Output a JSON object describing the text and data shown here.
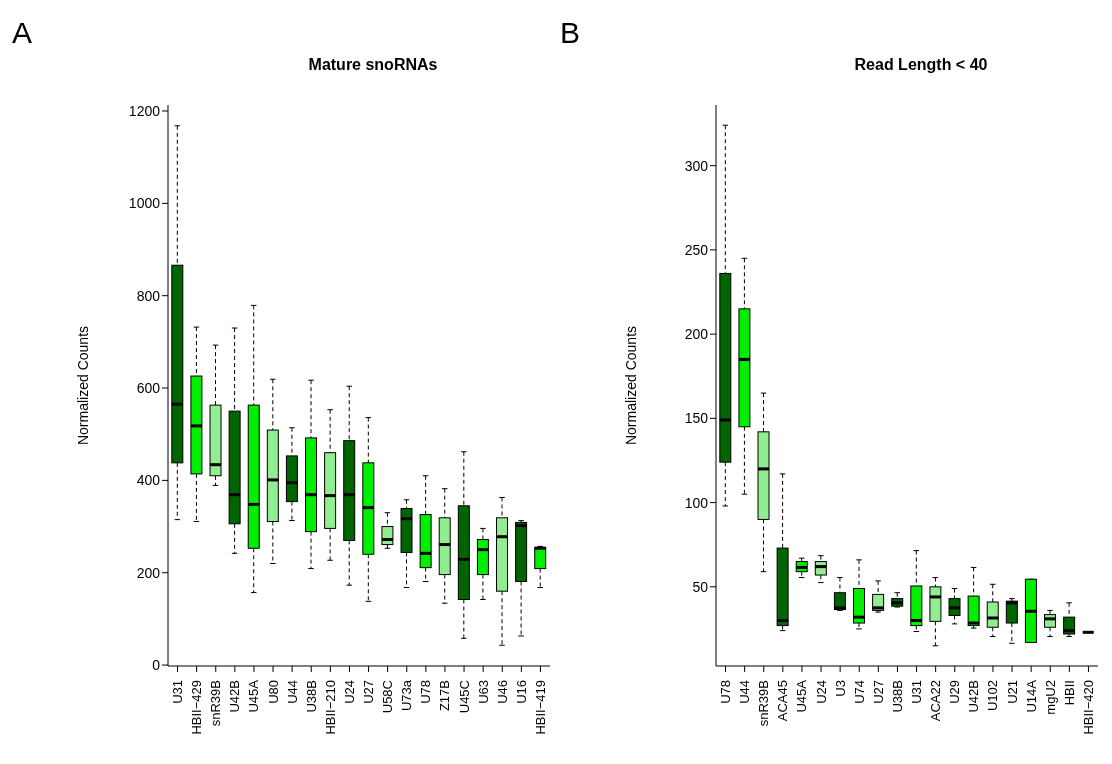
{
  "chart_data": [
    {
      "type": "box",
      "title": "Mature snoRNAs",
      "ylabel": "Normalized Counts",
      "annotations": [
        "A"
      ],
      "categories": [
        "U31",
        "HBII−429",
        "snR39B",
        "U42B",
        "U45A",
        "U80",
        "U44",
        "U38B",
        "HBII−210",
        "U24",
        "U27",
        "U58C",
        "U73a",
        "U78",
        "Z17B",
        "U45C",
        "U63",
        "U46",
        "U16",
        "HBII−419"
      ],
      "boxes": [
        {
          "low": 315,
          "q1": 438,
          "median": 565,
          "q3": 866,
          "high": 1168
        },
        {
          "low": 311,
          "q1": 414,
          "median": 518,
          "q3": 626,
          "high": 732
        },
        {
          "low": 389,
          "q1": 410,
          "median": 434,
          "q3": 563,
          "high": 693
        },
        {
          "low": 242,
          "q1": 306,
          "median": 369,
          "q3": 550,
          "high": 730
        },
        {
          "low": 157,
          "q1": 253,
          "median": 348,
          "q3": 563,
          "high": 779
        },
        {
          "low": 220,
          "q1": 311,
          "median": 401,
          "q3": 509,
          "high": 619
        },
        {
          "low": 313,
          "q1": 354,
          "median": 395,
          "q3": 453,
          "high": 514
        },
        {
          "low": 209,
          "q1": 289,
          "median": 369,
          "q3": 492,
          "high": 617
        },
        {
          "low": 227,
          "q1": 296,
          "median": 367,
          "q3": 460,
          "high": 553
        },
        {
          "low": 173,
          "q1": 270,
          "median": 369,
          "q3": 486,
          "high": 604
        },
        {
          "low": 138,
          "q1": 240,
          "median": 341,
          "q3": 438,
          "high": 536
        },
        {
          "low": 253,
          "q1": 261,
          "median": 272,
          "q3": 300,
          "high": 330
        },
        {
          "low": 168,
          "q1": 244,
          "median": 317,
          "q3": 339,
          "high": 358
        },
        {
          "low": 181,
          "q1": 211,
          "median": 242,
          "q3": 326,
          "high": 410
        },
        {
          "low": 134,
          "q1": 196,
          "median": 261,
          "q3": 319,
          "high": 382
        },
        {
          "low": 58,
          "q1": 142,
          "median": 229,
          "q3": 345,
          "high": 462
        },
        {
          "low": 142,
          "q1": 196,
          "median": 250,
          "q3": 272,
          "high": 296
        },
        {
          "low": 43,
          "q1": 160,
          "median": 278,
          "q3": 319,
          "high": 363
        },
        {
          "low": 63,
          "q1": 181,
          "median": 302,
          "q3": 309,
          "high": 313
        },
        {
          "low": 168,
          "q1": 209,
          "median": 253,
          "q3": 255,
          "high": 257
        }
      ],
      "colors": [
        "#006400",
        "#00ee00",
        "#90ee90",
        "#006400",
        "#00ee00",
        "#90ee90",
        "#006400",
        "#00ee00",
        "#90ee90",
        "#006400",
        "#00ee00",
        "#90ee90",
        "#006400",
        "#00ee00",
        "#90ee90",
        "#006400",
        "#00ee00",
        "#90ee90",
        "#006400",
        "#00ee00"
      ],
      "ylim": [
        -2,
        1213
      ],
      "yticks": [
        0,
        200,
        400,
        600,
        800,
        1000,
        1200
      ],
      "grid": false
    },
    {
      "type": "box",
      "title": "Read Length < 40",
      "ylabel": "Normalized Counts",
      "annotations": [
        "B"
      ],
      "categories": [
        "U78",
        "U44",
        "snR39B",
        "ACA45",
        "U45A",
        "U24",
        "U3",
        "U74",
        "U27",
        "U38B",
        "U31",
        "ACA22",
        "U29",
        "U42B",
        "U102",
        "U21",
        "U14A",
        "mgU2",
        "HBII",
        "HBII−420"
      ],
      "boxes": [
        {
          "low": 98,
          "q1": 124,
          "median": 149,
          "q3": 236,
          "high": 324
        },
        {
          "low": 105,
          "q1": 145,
          "median": 185,
          "q3": 215,
          "high": 245
        },
        {
          "low": 59,
          "q1": 90,
          "median": 120,
          "q3": 142,
          "high": 165
        },
        {
          "low": 24,
          "q1": 27,
          "median": 30,
          "q3": 73,
          "high": 117
        },
        {
          "low": 55.5,
          "q1": 59,
          "median": 61.5,
          "q3": 65,
          "high": 67
        },
        {
          "low": 52.5,
          "q1": 57,
          "median": 62,
          "q3": 65,
          "high": 68.5
        },
        {
          "low": 36,
          "q1": 36.5,
          "median": 37.5,
          "q3": 46.5,
          "high": 55.5
        },
        {
          "low": 25,
          "q1": 28.5,
          "median": 32,
          "q3": 49,
          "high": 66
        },
        {
          "low": 35,
          "q1": 36,
          "median": 37.5,
          "q3": 45.5,
          "high": 53.5
        },
        {
          "low": 38,
          "q1": 38.5,
          "median": 40.5,
          "q3": 43,
          "high": 46.5
        },
        {
          "low": 23.5,
          "q1": 27,
          "median": 30,
          "q3": 50.5,
          "high": 71.5
        },
        {
          "low": 15,
          "q1": 29.5,
          "median": 44,
          "q3": 50,
          "high": 55.5
        },
        {
          "low": 28,
          "q1": 33,
          "median": 37.5,
          "q3": 43,
          "high": 49
        },
        {
          "low": 25.5,
          "q1": 27,
          "median": 28.5,
          "q3": 44.5,
          "high": 61.5
        },
        {
          "low": 20.5,
          "q1": 26,
          "median": 31.5,
          "q3": 41,
          "high": 51.5
        },
        {
          "low": 16.5,
          "q1": 28.5,
          "median": 40.5,
          "q3": 41.5,
          "high": 43
        },
        {
          "low": 17,
          "q1": 17,
          "median": 35.5,
          "q3": 54.5,
          "high": 54.5
        },
        {
          "low": 20.5,
          "q1": 26,
          "median": 31,
          "q3": 33.5,
          "high": 36
        },
        {
          "low": 20.5,
          "q1": 22,
          "median": 24,
          "q3": 32,
          "high": 40.5
        },
        {
          "low": 23,
          "q1": 23,
          "median": 23,
          "q3": 23,
          "high": 23
        }
      ],
      "colors": [
        "#006400",
        "#00ee00",
        "#90ee90",
        "#006400",
        "#00ee00",
        "#90ee90",
        "#006400",
        "#00ee00",
        "#90ee90",
        "#006400",
        "#00ee00",
        "#90ee90",
        "#006400",
        "#00ee00",
        "#90ee90",
        "#006400",
        "#00ee00",
        "#90ee90",
        "#006400",
        "#000000"
      ],
      "ylim": [
        3,
        336
      ],
      "yticks": [
        50,
        100,
        150,
        200,
        250,
        300
      ],
      "grid": false
    }
  ]
}
